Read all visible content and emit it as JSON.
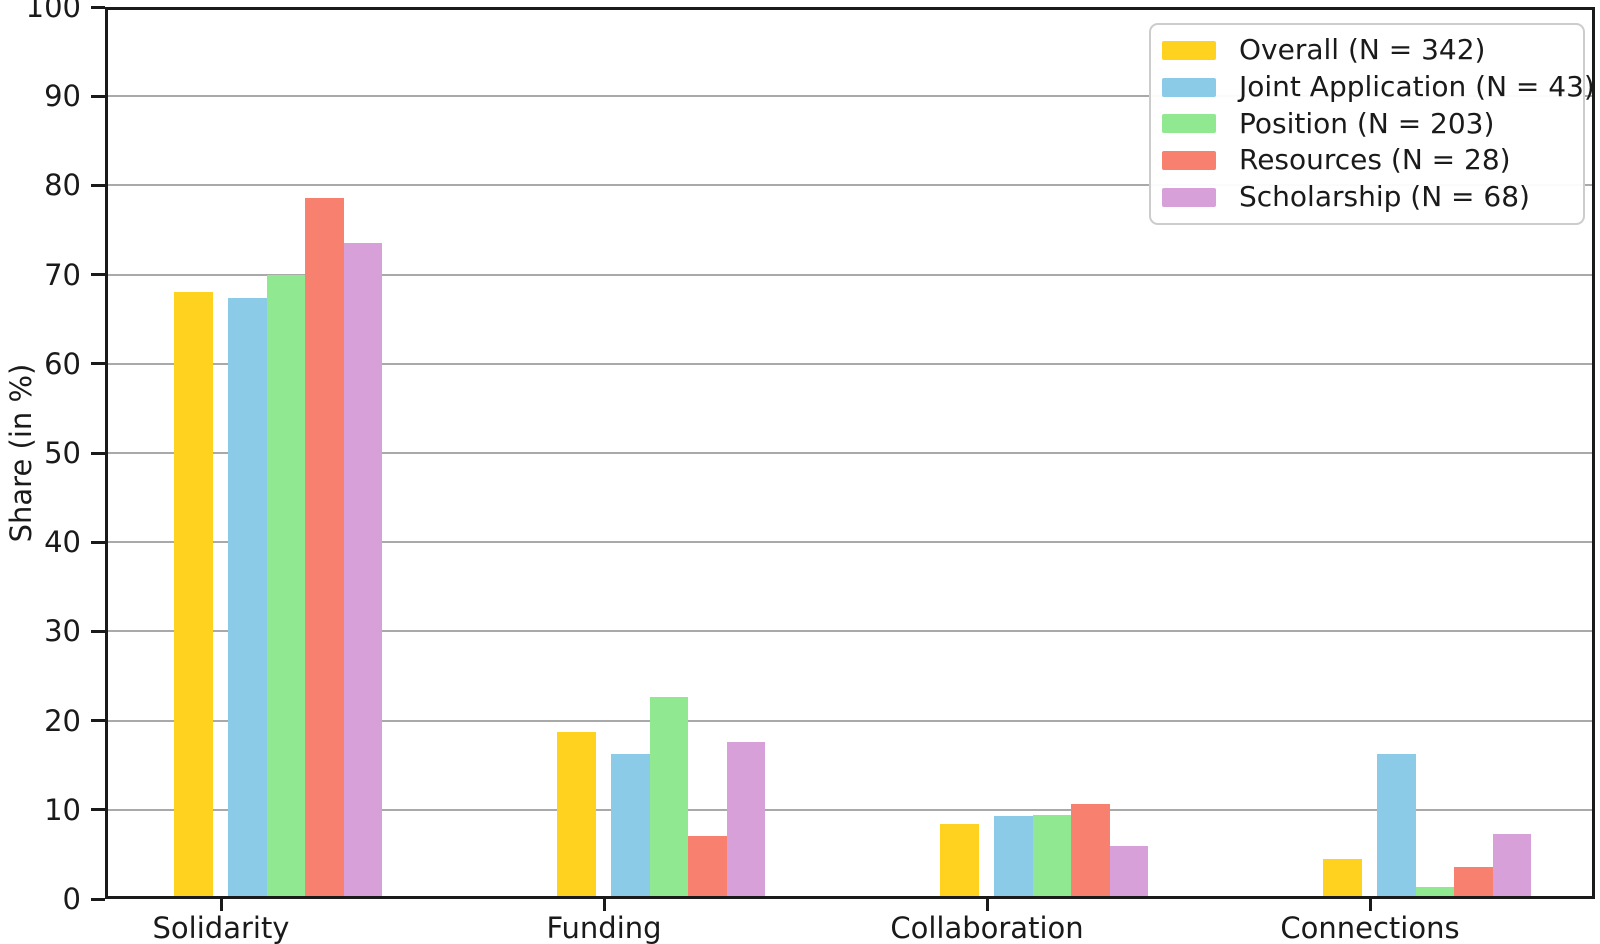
{
  "figure": {
    "background": "#ffffff"
  },
  "chart_data": {
    "type": "bar",
    "title": "",
    "xlabel": "",
    "ylabel": "Share (in %)",
    "ylim": [
      0,
      100
    ],
    "ytick_step": 10,
    "grid": "horizontal",
    "legend_position": "upper right",
    "categories": [
      "Solidarity",
      "Funding",
      "Collaboration",
      "Connections"
    ],
    "series": [
      {
        "name": "Overall (N = 342)",
        "color": "#FFD21F",
        "values": [
          68.1,
          18.7,
          8.4,
          4.5
        ]
      },
      {
        "name": "Joint Application (N = 43)",
        "color": "#8BCBE8",
        "values": [
          67.4,
          16.3,
          9.3,
          16.3
        ]
      },
      {
        "name": "Position (N = 203)",
        "color": "#90E890",
        "values": [
          70.0,
          22.7,
          9.4,
          1.4
        ]
      },
      {
        "name": "Resources (N = 28)",
        "color": "#F8806E",
        "values": [
          78.6,
          7.1,
          10.7,
          3.6
        ]
      },
      {
        "name": "Scholarship (N = 68)",
        "color": "#D8A0D8",
        "values": [
          73.5,
          17.6,
          5.9,
          7.3
        ]
      }
    ],
    "colors": {
      "grid": "#a9a9a9",
      "spine": "#1a1a1a",
      "text": "#1a1a1a",
      "legend_border": "#cccccc",
      "legend_background": "#ffffff"
    }
  }
}
